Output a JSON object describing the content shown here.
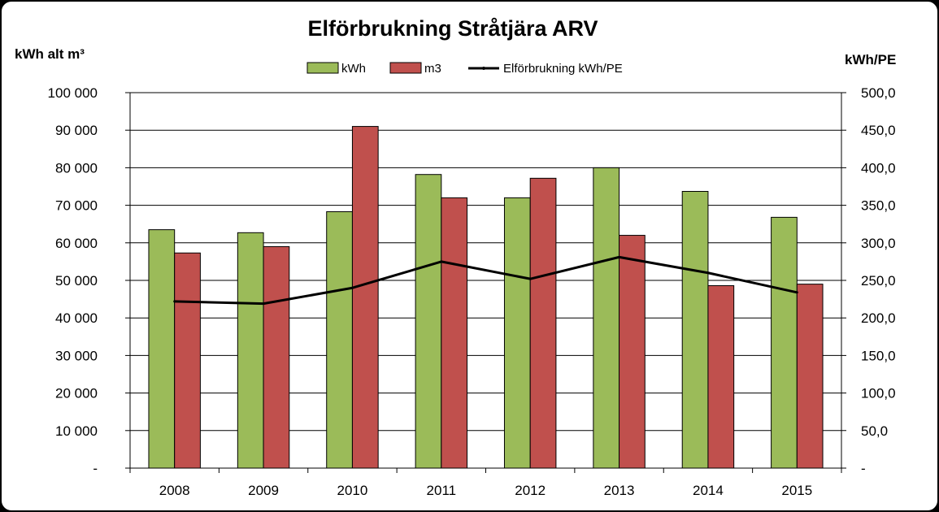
{
  "chart_data": {
    "type": "bar",
    "title": "Elförbrukning Stråtjära ARV",
    "ylabel_left": "kWh alt m³",
    "ylabel_right": "kWh/PE",
    "categories": [
      "2008",
      "2009",
      "2010",
      "2011",
      "2012",
      "2013",
      "2014",
      "2015"
    ],
    "series": [
      {
        "name": "kWh",
        "kind": "bar",
        "axis": "left",
        "color": "#9BBB59",
        "values": [
          63500,
          62700,
          68300,
          78200,
          72000,
          80000,
          73700,
          66800
        ]
      },
      {
        "name": "m3",
        "kind": "bar",
        "axis": "left",
        "color": "#C0504D",
        "values": [
          57300,
          59000,
          91000,
          72000,
          77200,
          62000,
          48600,
          49000
        ]
      },
      {
        "name": "Elförbrukning kWh/PE",
        "kind": "line",
        "axis": "right",
        "color": "#000000",
        "values": [
          222,
          219,
          240,
          275,
          252,
          281,
          260,
          234
        ]
      }
    ],
    "ylim_left": [
      0,
      100000
    ],
    "ylim_right": [
      0,
      500
    ],
    "yticks_left": [
      "-",
      "10 000",
      "20 000",
      "30 000",
      "40 000",
      "50 000",
      "60 000",
      "70 000",
      "80 000",
      "90 000",
      "100 000"
    ],
    "yticks_right": [
      "-",
      "50,0",
      "100,0",
      "150,0",
      "200,0",
      "250,0",
      "300,0",
      "350,0",
      "400,0",
      "450,0",
      "500,0"
    ],
    "grid": true,
    "legend_position": "top"
  }
}
